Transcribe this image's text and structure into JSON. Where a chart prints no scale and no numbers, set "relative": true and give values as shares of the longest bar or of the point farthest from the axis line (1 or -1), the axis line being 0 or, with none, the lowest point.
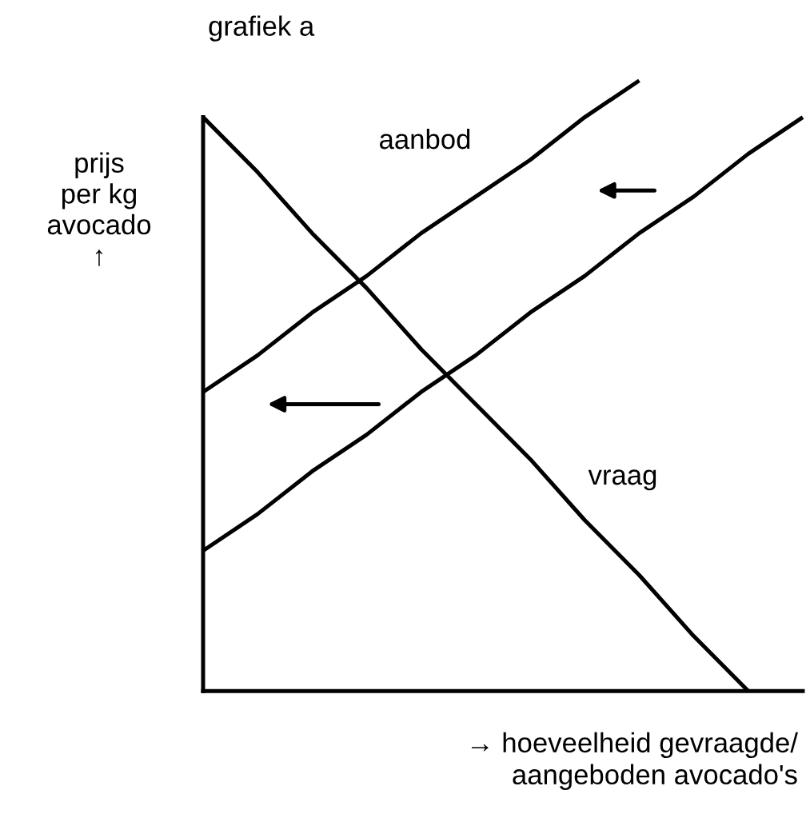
{
  "chart_data": {
    "type": "line",
    "relative": true,
    "title": "grafiek a",
    "ylabel": "prijs\nper kg\navocado\n↑",
    "xlabel": "→ hoeveelheid gevraagde/\naangeboden avocado's",
    "categories": [
      null,
      null,
      null,
      null,
      null,
      null,
      null,
      null,
      null,
      null,
      null,
      null
    ],
    "series": [
      {
        "name": "aanbod",
        "color": "#000000",
        "values": [
          0.49,
          0.55,
          0.62,
          0.68,
          0.75,
          0.81,
          0.87,
          0.94,
          1.0,
          null,
          null,
          null
        ]
      },
      {
        "color": "#000000",
        "values": [
          0.23,
          0.29,
          0.36,
          0.42,
          0.49,
          0.55,
          0.62,
          0.68,
          0.75,
          0.81,
          0.88,
          0.94
        ]
      },
      {
        "name": "vraag",
        "color": "#000000",
        "values": [
          0.94,
          0.85,
          0.75,
          0.66,
          0.56,
          0.47,
          0.38,
          0.28,
          0.19,
          0.09,
          0,
          null
        ]
      }
    ],
    "marker": "none",
    "line_style": "solid",
    "legend": false
  }
}
